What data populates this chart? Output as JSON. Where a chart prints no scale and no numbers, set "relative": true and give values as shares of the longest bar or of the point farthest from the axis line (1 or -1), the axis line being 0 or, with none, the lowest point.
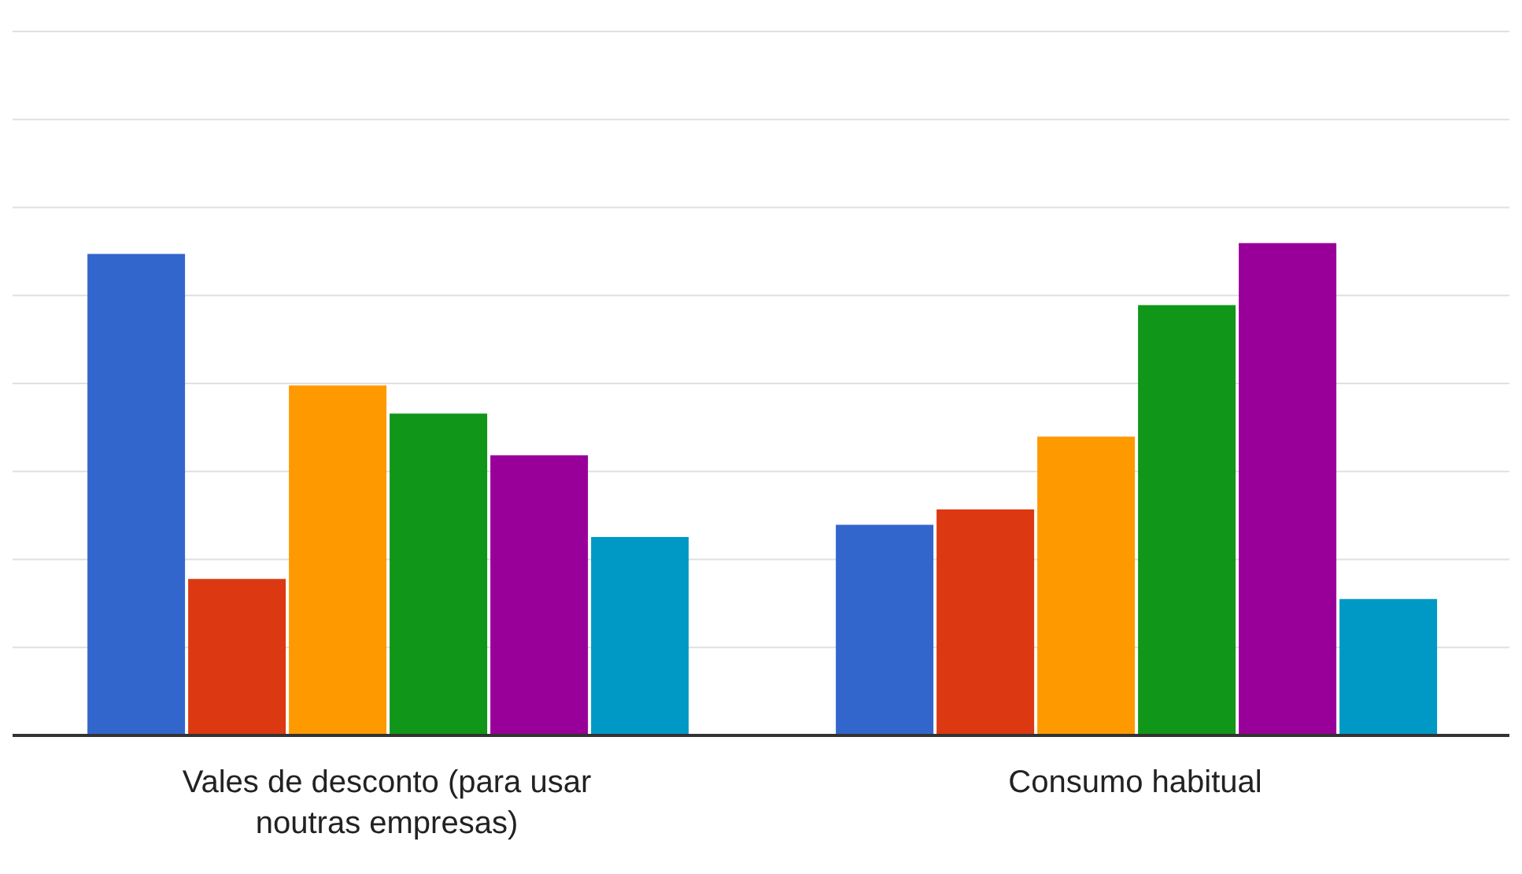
{
  "chart_data": {
    "type": "bar",
    "relative": true,
    "grid": "y",
    "categories": [
      "Vales de desconto (para usar noutras empresas)",
      "Consumo habitual"
    ],
    "series": [
      {
        "color": "#3366cc",
        "values": [
          0.978,
          0.428
        ]
      },
      {
        "color": "#dc3912",
        "values": [
          0.318,
          0.459
        ]
      },
      {
        "color": "#ff9900",
        "values": [
          0.711,
          0.607
        ]
      },
      {
        "color": "#109618",
        "values": [
          0.654,
          0.874
        ]
      },
      {
        "color": "#990099",
        "values": [
          0.569,
          1
        ]
      },
      {
        "color": "#0099c6",
        "values": [
          0.403,
          0.277
        ]
      }
    ]
  }
}
